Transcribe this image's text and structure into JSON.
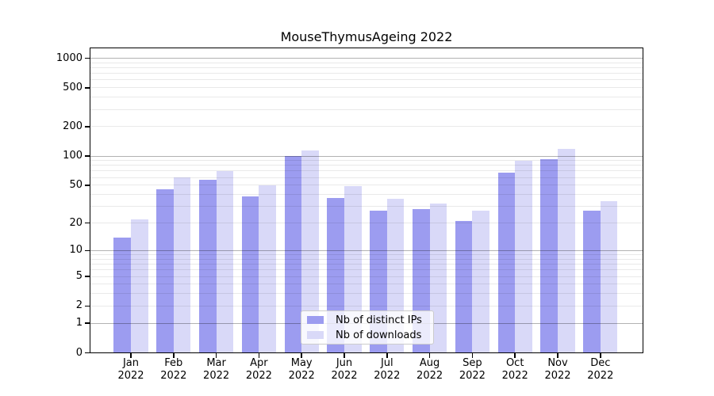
{
  "chart_data": {
    "type": "bar",
    "title": "MouseThymusAgeing 2022",
    "categories": [
      "Jan",
      "Feb",
      "Mar",
      "Apr",
      "May",
      "Jun",
      "Jul",
      "Aug",
      "Sep",
      "Oct",
      "Nov",
      "Dec"
    ],
    "category_year": "2022",
    "series": [
      {
        "name": "Nb of distinct IPs",
        "color": "#9c9cf0",
        "values": [
          14,
          45,
          57,
          38,
          100,
          37,
          27,
          28,
          21,
          67,
          92,
          27
        ]
      },
      {
        "name": "Nb of downloads",
        "color": "#d9d9f8",
        "values": [
          22,
          60,
          70,
          50,
          115,
          49,
          36,
          32,
          27,
          90,
          119,
          34
        ]
      }
    ],
    "xlabel": "",
    "ylabel": "",
    "yscale": "log1p",
    "y_tick_values": [
      0,
      1,
      2,
      5,
      10,
      20,
      50,
      100,
      200,
      500,
      1000
    ],
    "y_minor_gridlines": [
      2,
      3,
      4,
      5,
      6,
      7,
      8,
      9,
      20,
      30,
      40,
      50,
      60,
      70,
      80,
      90,
      200,
      300,
      400,
      500,
      600,
      700,
      800,
      900
    ],
    "y_major_gridlines": [
      1,
      10,
      100,
      1000
    ],
    "ylim": [
      0,
      1286
    ],
    "grid": true,
    "legend_position": "lower center",
    "grid_major_color": "#b3b3b3",
    "grid_minor_color": "#eaeaea",
    "axis_color": "#000000",
    "background_color": "#ffffff"
  }
}
